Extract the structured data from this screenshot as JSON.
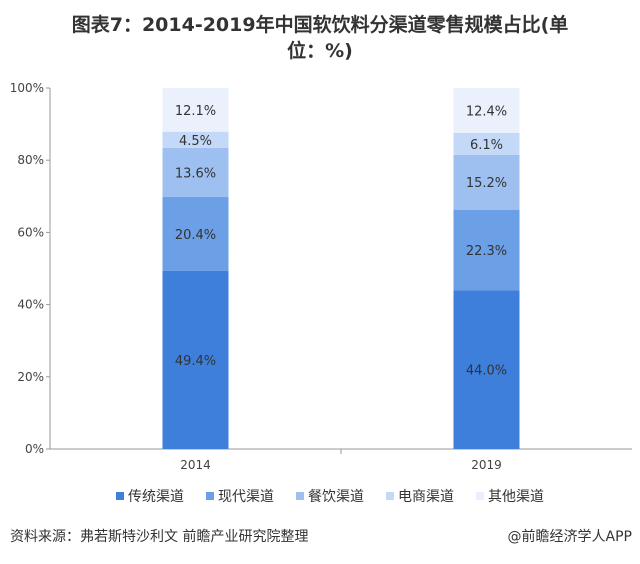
{
  "title_line1": "图表7：2014-2019年中国软饮料分渠道零售规模占比(单",
  "title_line2": "位：%)",
  "source": "资料来源：弗若斯特沙利文 前瞻产业研究院整理",
  "credit": "@前瞻经济学人APP",
  "chart_data": {
    "type": "bar",
    "stacked": true,
    "title": "图表7：2014-2019年中国软饮料分渠道零售规模占比(单位：%)",
    "categories": [
      "2014",
      "2019"
    ],
    "series": [
      {
        "name": "传统渠道",
        "values": [
          49.4,
          44.0
        ],
        "labels": [
          "49.4%",
          "44.0%"
        ],
        "color": "#3e7fdc"
      },
      {
        "name": "现代渠道",
        "values": [
          20.4,
          22.3
        ],
        "labels": [
          "20.4%",
          "22.3%"
        ],
        "color": "#6b9fe6"
      },
      {
        "name": "餐饮渠道",
        "values": [
          13.6,
          15.2
        ],
        "labels": [
          "13.6%",
          "15.2%"
        ],
        "color": "#9dc0f0"
      },
      {
        "name": "电商渠道",
        "values": [
          4.5,
          6.1
        ],
        "labels": [
          "4.5%",
          "6.1%"
        ],
        "color": "#c3d9f7"
      },
      {
        "name": "其他渠道",
        "values": [
          12.1,
          12.4
        ],
        "labels": [
          "12.1%",
          "12.4%"
        ],
        "color": "#eaf1fc"
      }
    ],
    "yticks": [
      "0%",
      "20%",
      "40%",
      "60%",
      "80%",
      "100%"
    ],
    "ylim": [
      0,
      100
    ],
    "legend": "bottom",
    "grid": false
  }
}
